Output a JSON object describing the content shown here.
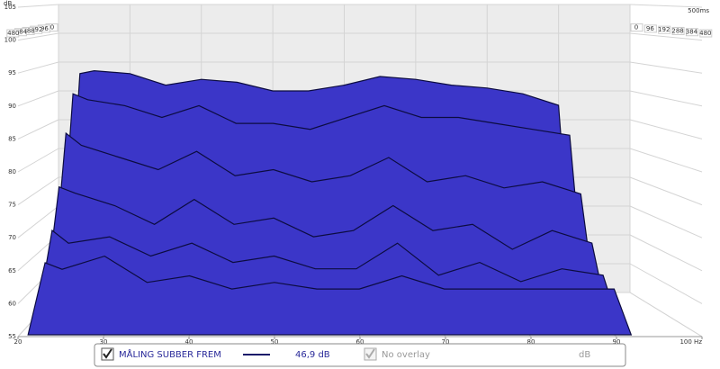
{
  "chart_data": {
    "type": "waterfall",
    "ylabel": "dB",
    "time_label": "500ms",
    "x": [
      21,
      23,
      25,
      30,
      35,
      40,
      45,
      50,
      55,
      60,
      65,
      70,
      75,
      80,
      85,
      90,
      92
    ],
    "xlim": [
      20,
      100
    ],
    "xticks": [
      20,
      30,
      40,
      50,
      60,
      70,
      80,
      90,
      {
        "value": 100,
        "label": "100 Hz"
      }
    ],
    "ylim": [
      55,
      105
    ],
    "yticks": [
      55,
      60,
      65,
      70,
      75,
      80,
      85,
      90,
      95,
      100,
      105
    ],
    "zlim": [
      0,
      500
    ],
    "zticks": [
      0,
      96,
      192,
      288,
      384,
      480
    ],
    "grid": true,
    "series": [
      {
        "name": "MÅLING SUBBER FREM",
        "color": "#3b36c8",
        "times": [
          0,
          96,
          192,
          288,
          384,
          480
        ],
        "values": [
          [
            55,
            93,
            93.5,
            93,
            91,
            92,
            91.5,
            90,
            90,
            91,
            92.5,
            92,
            91,
            90.5,
            89.5,
            87.5,
            55
          ],
          [
            55,
            90,
            89,
            88,
            86,
            88,
            85,
            85,
            84,
            86,
            88,
            86,
            86,
            85,
            84,
            83,
            55
          ],
          [
            55,
            84,
            82,
            80,
            78,
            81,
            77,
            78,
            76,
            77,
            80,
            76,
            77,
            75,
            76,
            74,
            55
          ],
          [
            55,
            76,
            75,
            73,
            70,
            74,
            70,
            71,
            68,
            69,
            73,
            69,
            70,
            66,
            69,
            67,
            55
          ],
          [
            55,
            70,
            68,
            69,
            66,
            68,
            65,
            66,
            64,
            64,
            68,
            63,
            65,
            62,
            64,
            63,
            55
          ],
          [
            55,
            66,
            65,
            67,
            63,
            64,
            62,
            63,
            62,
            62,
            64,
            62,
            62,
            62,
            62,
            62,
            55
          ]
        ]
      }
    ],
    "legend_value": "46,9 dB",
    "overlay": "No overlay",
    "overlay_unit": "dB"
  }
}
